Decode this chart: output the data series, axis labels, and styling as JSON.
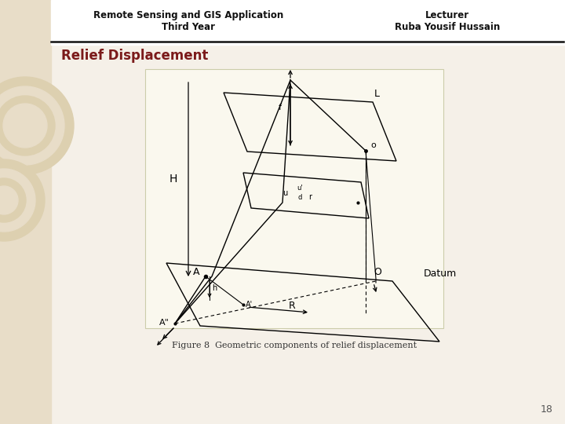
{
  "bg_color": "#f5f0e8",
  "left_panel_color": "#e8ddc8",
  "header_left": "Remote Sensing and GIS Application\nThird Year",
  "header_right": "Lecturer\nRuba Yousif Hussain",
  "title": "Relief Displacement",
  "title_color": "#7B1A1A",
  "caption": "Figure 8  Geometric components of relief displacement",
  "page_number": "18",
  "diagram_bg": "#faf8ee"
}
